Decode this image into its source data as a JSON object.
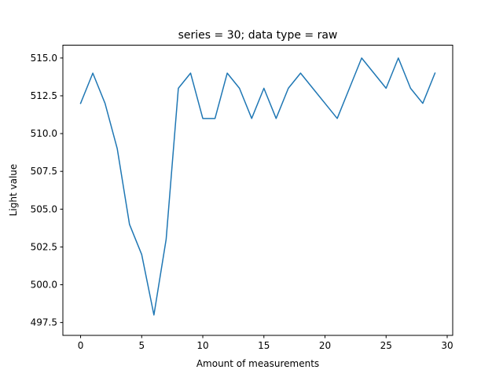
{
  "chart_data": {
    "type": "line",
    "title": "series = 30; data type = raw",
    "xlabel": "Amount of measurements",
    "ylabel": "Light value",
    "xlim": [
      -1.45,
      30.45
    ],
    "ylim": [
      496.65,
      515.85
    ],
    "xticks": [
      0,
      5,
      10,
      15,
      20,
      25,
      30
    ],
    "xtick_labels": [
      "0",
      "5",
      "10",
      "15",
      "20",
      "25",
      "30"
    ],
    "yticks": [
      497.5,
      500.0,
      502.5,
      505.0,
      507.5,
      510.0,
      512.5,
      515.0
    ],
    "ytick_labels": [
      "497.5",
      "500.0",
      "502.5",
      "505.0",
      "507.5",
      "510.0",
      "512.5",
      "515.0"
    ],
    "grid": false,
    "series": [
      {
        "color": "#1f77b4",
        "x": [
          0,
          1,
          2,
          3,
          4,
          5,
          6,
          7,
          8,
          9,
          10,
          11,
          12,
          13,
          14,
          15,
          16,
          17,
          18,
          19,
          20,
          21,
          22,
          23,
          24,
          25,
          26,
          27,
          28,
          29
        ],
        "y": [
          512,
          514,
          512,
          509,
          504,
          502,
          498,
          503,
          513,
          514,
          511,
          511,
          514,
          513,
          511,
          513,
          511,
          513,
          514,
          513,
          512,
          511,
          513,
          515,
          514,
          513,
          515,
          513,
          512,
          514
        ]
      }
    ]
  }
}
